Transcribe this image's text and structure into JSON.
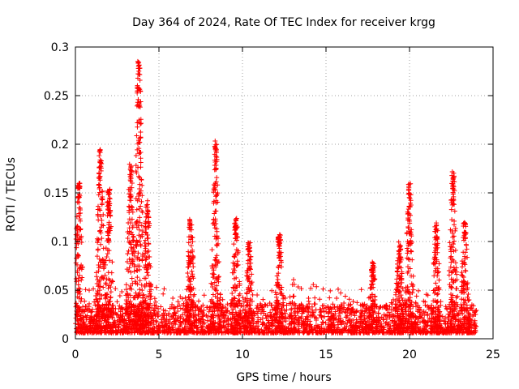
{
  "chart_data": {
    "type": "scatter",
    "title": "Day 364 of 2024, Rate Of TEC Index for receiver krgg",
    "xlabel": "GPS time / hours",
    "ylabel": "ROTI / TECUs",
    "xlim": [
      0,
      25
    ],
    "ylim": [
      0,
      0.3
    ],
    "xticks": [
      0,
      5,
      10,
      15,
      20,
      25
    ],
    "yticks": [
      0,
      0.05,
      0.1,
      0.15,
      0.2,
      0.25,
      0.3
    ],
    "xtick_labels": [
      "0",
      "5",
      "10",
      "15",
      "20",
      "25"
    ],
    "ytick_labels": [
      "0",
      "0.05",
      "0.1",
      "0.15",
      "0.2",
      "0.25",
      "0.3"
    ],
    "grid": true,
    "legend": "none",
    "marker": "+",
    "color": "#ff0000",
    "x_data_range": [
      0,
      24
    ],
    "peaks": [
      {
        "x": 0.2,
        "y": 0.16
      },
      {
        "x": 1.5,
        "y": 0.195
      },
      {
        "x": 2.0,
        "y": 0.155
      },
      {
        "x": 3.3,
        "y": 0.18
      },
      {
        "x": 3.8,
        "y": 0.29
      },
      {
        "x": 4.3,
        "y": 0.145
      },
      {
        "x": 6.9,
        "y": 0.125
      },
      {
        "x": 8.4,
        "y": 0.205
      },
      {
        "x": 9.6,
        "y": 0.125
      },
      {
        "x": 10.4,
        "y": 0.103
      },
      {
        "x": 12.2,
        "y": 0.108
      },
      {
        "x": 17.8,
        "y": 0.08
      },
      {
        "x": 19.4,
        "y": 0.1
      },
      {
        "x": 20.0,
        "y": 0.162
      },
      {
        "x": 21.6,
        "y": 0.12
      },
      {
        "x": 22.6,
        "y": 0.172
      },
      {
        "x": 23.3,
        "y": 0.12
      }
    ]
  }
}
